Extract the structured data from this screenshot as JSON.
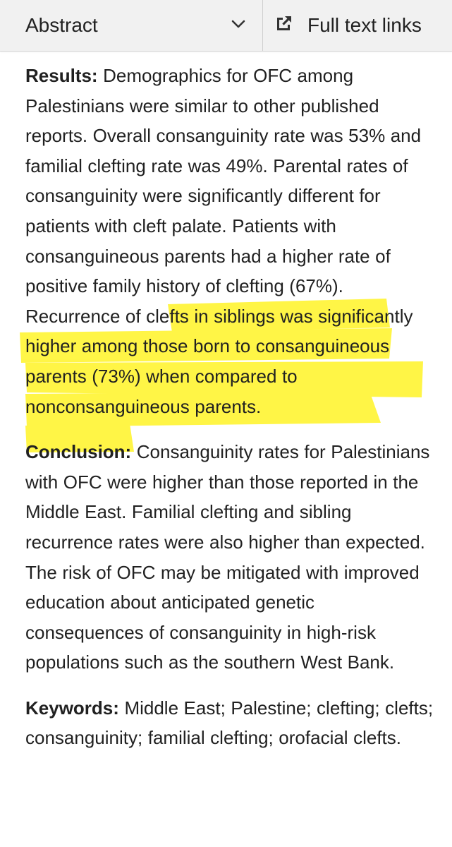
{
  "toolbar": {
    "abstract_label": "Abstract",
    "full_text_links_label": "Full text links",
    "chevron_icon": "chevron-down-icon",
    "external_link_icon": "external-link-icon"
  },
  "colors": {
    "toolbar_bg": "#f1f1f1",
    "text": "#212121",
    "highlight": "#fff200"
  },
  "results": {
    "heading": "Results:",
    "text_before_highlight": " Demographics for OFC among Palestinians were similar to other published reports. Overall consanguinity rate was 53% and familial clefting rate was 49%. Parental rates of consanguinity were significantly different for patients with cleft palate. Patients with consanguineous parents had a higher rate of positive family history of clefting (67%). R",
    "highlighted_text": "ecurrence of clefts in siblings was significantly higher among those born to consanguineous parents (73%) when compared to nonconsanguineous parents."
  },
  "conclusion": {
    "heading": "Conclusion:",
    "text": " Consanguinity rates for Palestinians with OFC were higher than those reported in the Middle East. Familial clefting and sibling recurrence rates were also higher than expected. The risk of OFC may be mitigated with improved education about anticipated genetic consequences of consanguinity in high-risk populations such as the southern West Bank."
  },
  "keywords": {
    "heading": "Keywords:",
    "text": " Middle East; Palestine; clefting; clefts; consanguinity; familial clefting; orofacial clefts."
  }
}
